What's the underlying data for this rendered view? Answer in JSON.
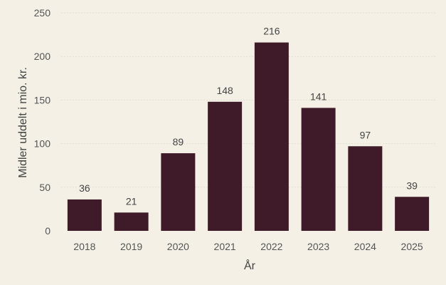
{
  "chart_data": {
    "type": "bar",
    "categories": [
      "2018",
      "2019",
      "2020",
      "2021",
      "2022",
      "2023",
      "2024",
      "2025"
    ],
    "values": [
      36,
      21,
      89,
      148,
      216,
      141,
      97,
      39
    ],
    "data_labels": [
      "36",
      "21",
      "89",
      "148",
      "216",
      "141",
      "97",
      "39"
    ],
    "title": "",
    "xlabel": "År",
    "ylabel": "Midler uddelt i mio. kr.",
    "ylim": [
      0,
      250
    ],
    "yticks": [
      0,
      50,
      100,
      150,
      200,
      250
    ],
    "ytick_labels": [
      "0",
      "50",
      "100",
      "150",
      "200",
      "250"
    ],
    "grid": true,
    "legend": "none",
    "colors": {
      "background": "#f4f0e6",
      "bar": "#3f1a29",
      "grid": "#e3ddd0"
    }
  }
}
